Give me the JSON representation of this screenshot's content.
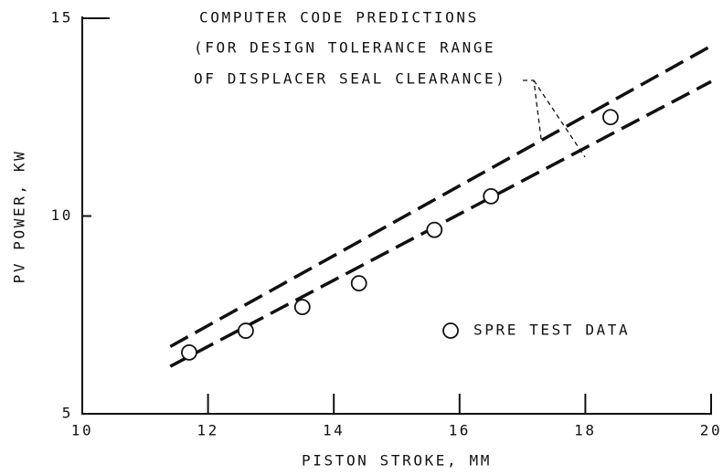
{
  "chart_data": {
    "type": "scatter",
    "xlabel": "PISTON STROKE, MM",
    "ylabel": "PV POWER, KW",
    "xlim": [
      10,
      20
    ],
    "xticks": [
      10,
      12,
      14,
      16,
      18,
      20
    ],
    "ylim": [
      5,
      15
    ],
    "yticks": [
      5,
      10,
      15
    ],
    "annotation": [
      "COMPUTER CODE PREDICTIONS",
      "(FOR DESIGN TOLERANCE RANGE",
      "OF DISPLACER SEAL CLEARANCE)"
    ],
    "series": [
      {
        "name": "SPRE TEST DATA",
        "x": [
          11.7,
          12.6,
          13.5,
          14.4,
          15.6,
          16.5,
          18.4
        ],
        "values": [
          6.55,
          7.1,
          7.7,
          8.3,
          9.65,
          10.5,
          12.5
        ]
      }
    ],
    "lines": [
      {
        "x": [
          11.4,
          20
        ],
        "values": [
          6.7,
          14.3
        ]
      },
      {
        "x": [
          11.4,
          20
        ],
        "values": [
          6.2,
          13.4
        ]
      }
    ]
  }
}
